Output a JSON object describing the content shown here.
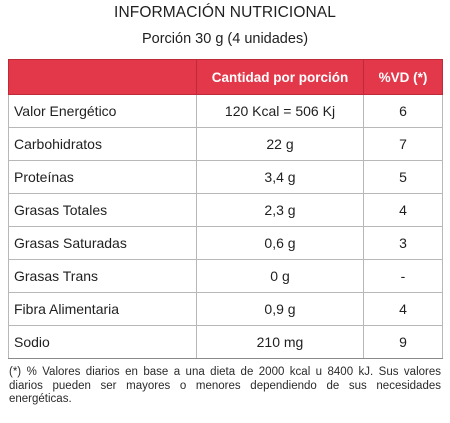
{
  "title": "INFORMACIÓN NUTRICIONAL",
  "subtitle": "Porción 30 g (4 unidades)",
  "header_color": "#e3384a",
  "table": {
    "headers": [
      "",
      "Cantidad por porción",
      "%VD (*)"
    ],
    "rows": [
      {
        "name": "Valor Energético",
        "amount": "120 Kcal = 506 Kj",
        "vd": "6"
      },
      {
        "name": "Carbohidratos",
        "amount": "22 g",
        "vd": "7"
      },
      {
        "name": "Proteínas",
        "amount": "3,4 g",
        "vd": "5"
      },
      {
        "name": "Grasas Totales",
        "amount": "2,3 g",
        "vd": "4"
      },
      {
        "name": "Grasas Saturadas",
        "amount": "0,6 g",
        "vd": "3"
      },
      {
        "name": "Grasas Trans",
        "amount": "0 g",
        "vd": "-"
      },
      {
        "name": "Fibra Alimentaria",
        "amount": "0,9 g",
        "vd": "4"
      },
      {
        "name": "Sodio",
        "amount": "210 mg",
        "vd": "9"
      }
    ]
  },
  "footnote": "(*) % Valores diarios en base a una dieta de 2000 kcal u 8400 kJ. Sus valores diarios pueden ser mayores o menores dependiendo de sus necesidades energéticas."
}
